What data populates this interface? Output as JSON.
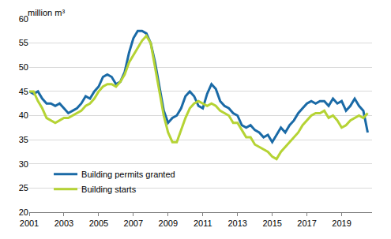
{
  "chart_data": {
    "type": "line",
    "ylabel": "million m³",
    "x": [
      2001,
      2001.25,
      2001.5,
      2001.75,
      2002,
      2002.25,
      2002.5,
      2002.75,
      2003,
      2003.25,
      2003.5,
      2003.75,
      2004,
      2004.25,
      2004.5,
      2004.75,
      2005,
      2005.25,
      2005.5,
      2005.75,
      2006,
      2006.25,
      2006.5,
      2006.75,
      2007,
      2007.25,
      2007.5,
      2007.75,
      2008,
      2008.25,
      2008.5,
      2008.75,
      2009,
      2009.25,
      2009.5,
      2009.75,
      2010,
      2010.25,
      2010.5,
      2010.75,
      2011,
      2011.25,
      2011.5,
      2011.75,
      2012,
      2012.25,
      2012.5,
      2012.75,
      2013,
      2013.25,
      2013.5,
      2013.75,
      2014,
      2014.25,
      2014.5,
      2014.75,
      2015,
      2015.25,
      2015.5,
      2015.75,
      2016,
      2016.25,
      2016.5,
      2016.75,
      2017,
      2017.25,
      2017.5,
      2017.75,
      2018,
      2018.25,
      2018.5,
      2018.75,
      2019,
      2019.25,
      2019.5,
      2019.75,
      2020,
      2020.25,
      2020.5
    ],
    "series": [
      {
        "name": "Building permits granted",
        "color": "#1a6aa6",
        "values": [
          45,
          44.5,
          45,
          43.5,
          42.5,
          42.5,
          42,
          42.5,
          41.5,
          40.5,
          41,
          41.5,
          42.5,
          44,
          43.5,
          45,
          46,
          48,
          48.5,
          48,
          46.5,
          47,
          49,
          53,
          56,
          57.5,
          57.5,
          57,
          55,
          51,
          46,
          41,
          38.5,
          39.5,
          40,
          41.5,
          44,
          45,
          44,
          42,
          41.5,
          44.5,
          46.5,
          45.5,
          43,
          42,
          41.5,
          40.5,
          40,
          38,
          37.5,
          38,
          37,
          36.5,
          35.5,
          36,
          34.5,
          36,
          37.5,
          36.5,
          38,
          39,
          40.5,
          41.5,
          42.5,
          43,
          42.5,
          43,
          43,
          42,
          43.5,
          42.5,
          43,
          41,
          42,
          43.5,
          42,
          41,
          36.5
        ]
      },
      {
        "name": "Building starts",
        "color": "#b5d334",
        "values": [
          45,
          45,
          43,
          41.5,
          39.5,
          39,
          38.5,
          39,
          39.5,
          39.5,
          40,
          40.5,
          41,
          42,
          42.5,
          43.5,
          45,
          46,
          46.5,
          46.5,
          46,
          47,
          48.5,
          51,
          52.5,
          54,
          55.5,
          56.5,
          55,
          50,
          45,
          40,
          36.5,
          34.5,
          34.5,
          37,
          39.5,
          41.5,
          42.5,
          43,
          42.5,
          42,
          42.5,
          42,
          41,
          40.5,
          40,
          38.5,
          38.5,
          37,
          35.5,
          35.5,
          34,
          33.5,
          33,
          32.5,
          31.5,
          31,
          32.5,
          33.5,
          34.5,
          35.5,
          36.5,
          38,
          39,
          40,
          40.5,
          40.5,
          41,
          39.5,
          40,
          39,
          37.5,
          38,
          39,
          39.5,
          40,
          39.5,
          40.5
        ]
      }
    ],
    "xlim": [
      2001,
      2020.75
    ],
    "xticks": [
      2001,
      2003,
      2005,
      2007,
      2009,
      2011,
      2013,
      2015,
      2017,
      2019
    ],
    "ylim": [
      20,
      60
    ],
    "yticks": [
      20,
      25,
      30,
      35,
      40,
      45,
      50,
      55,
      60
    ],
    "grid": true,
    "legend": "lower left"
  }
}
